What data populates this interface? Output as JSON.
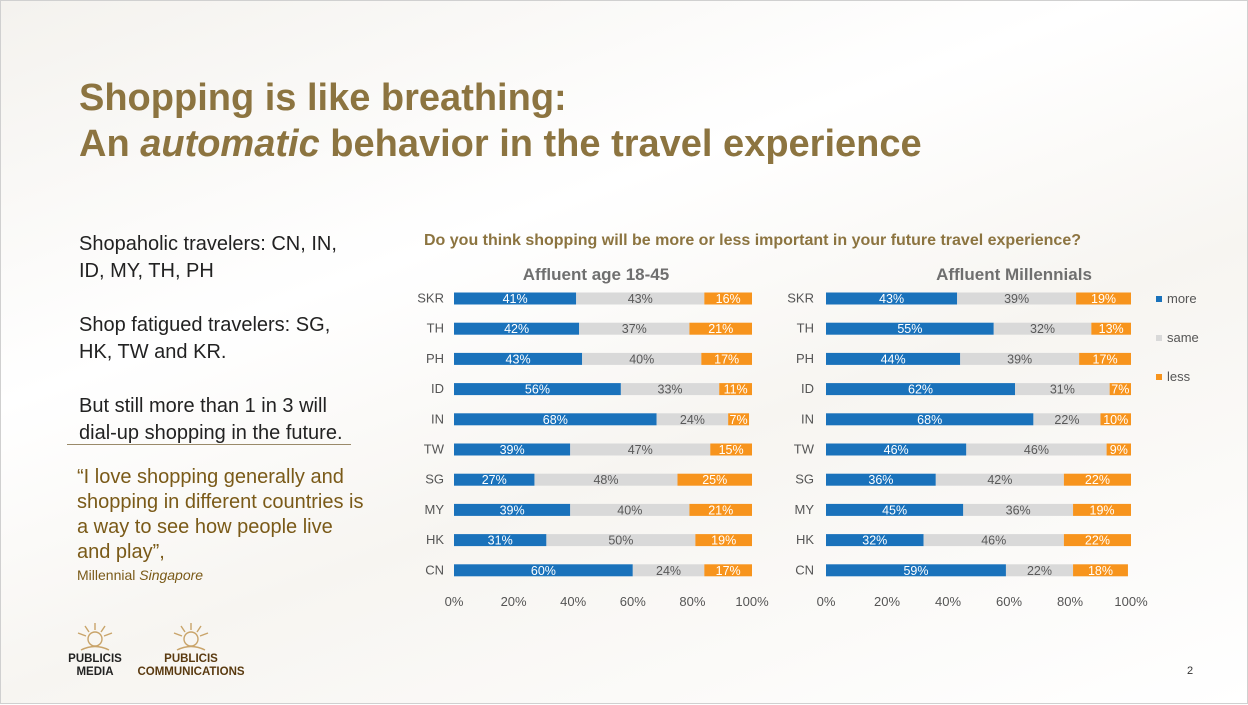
{
  "slide": {
    "title_line1": "Shopping is like breathing:",
    "title_line2_pre": "An ",
    "title_line2_em": "automatic",
    "title_line2_post": " behavior in the travel experience",
    "left_para1": "Shopaholic travelers: CN, IN, ID, MY, TH,  PH",
    "left_para2": "Shop fatigued travelers: SG, HK, TW and KR.",
    "left_para3": "But still more than 1 in 3 will dial-up shopping in the future.",
    "quote": "“I love shopping generally and shopping in different countries is a way to see how people live and play”,",
    "quote_attr_pre": "Millennial ",
    "quote_attr_em": "Singapore",
    "question": "Do you think shopping will be more or less important in your future travel experience?",
    "logo1_line1": "PUBLICIS",
    "logo1_line2": "MEDIA",
    "logo2_line1": "PUBLICIS",
    "logo2_line2": "COMMUNICATIONS",
    "page_number": "2",
    "title_color": "#8c7440",
    "quote_color": "#7a5a18"
  },
  "chart_data": [
    {
      "type": "bar",
      "orientation": "horizontal",
      "stacked": "percent",
      "title": "Affluent age 18-45",
      "categories": [
        "SKR",
        "TH",
        "PH",
        "ID",
        "IN",
        "TW",
        "SG",
        "MY",
        "HK",
        "CN"
      ],
      "series": [
        {
          "name": "more",
          "color": "#1a72bb",
          "values": [
            41,
            42,
            43,
            56,
            68,
            39,
            27,
            39,
            31,
            60
          ]
        },
        {
          "name": "same",
          "color": "#d9d9d9",
          "values": [
            43,
            37,
            40,
            33,
            24,
            47,
            48,
            40,
            50,
            24
          ]
        },
        {
          "name": "less",
          "color": "#f7941d",
          "values": [
            16,
            21,
            17,
            11,
            7,
            15,
            25,
            21,
            19,
            17
          ]
        }
      ],
      "xlim": [
        0,
        100
      ],
      "xticks": [
        "0%",
        "20%",
        "40%",
        "60%",
        "80%",
        "100%"
      ],
      "grid": false
    },
    {
      "type": "bar",
      "orientation": "horizontal",
      "stacked": "percent",
      "title": "Affluent Millennials",
      "categories": [
        "SKR",
        "TH",
        "PH",
        "ID",
        "IN",
        "TW",
        "SG",
        "MY",
        "HK",
        "CN"
      ],
      "series": [
        {
          "name": "more",
          "color": "#1a72bb",
          "values": [
            43,
            55,
            44,
            62,
            68,
            46,
            36,
            45,
            32,
            59
          ]
        },
        {
          "name": "same",
          "color": "#d9d9d9",
          "values": [
            39,
            32,
            39,
            31,
            22,
            46,
            42,
            36,
            46,
            22
          ]
        },
        {
          "name": "less",
          "color": "#f7941d",
          "values": [
            19,
            13,
            17,
            7,
            10,
            9,
            22,
            19,
            22,
            18
          ]
        }
      ],
      "xlim": [
        0,
        100
      ],
      "xticks": [
        "0%",
        "20%",
        "40%",
        "60%",
        "80%",
        "100%"
      ],
      "grid": false,
      "legend": "right"
    }
  ]
}
